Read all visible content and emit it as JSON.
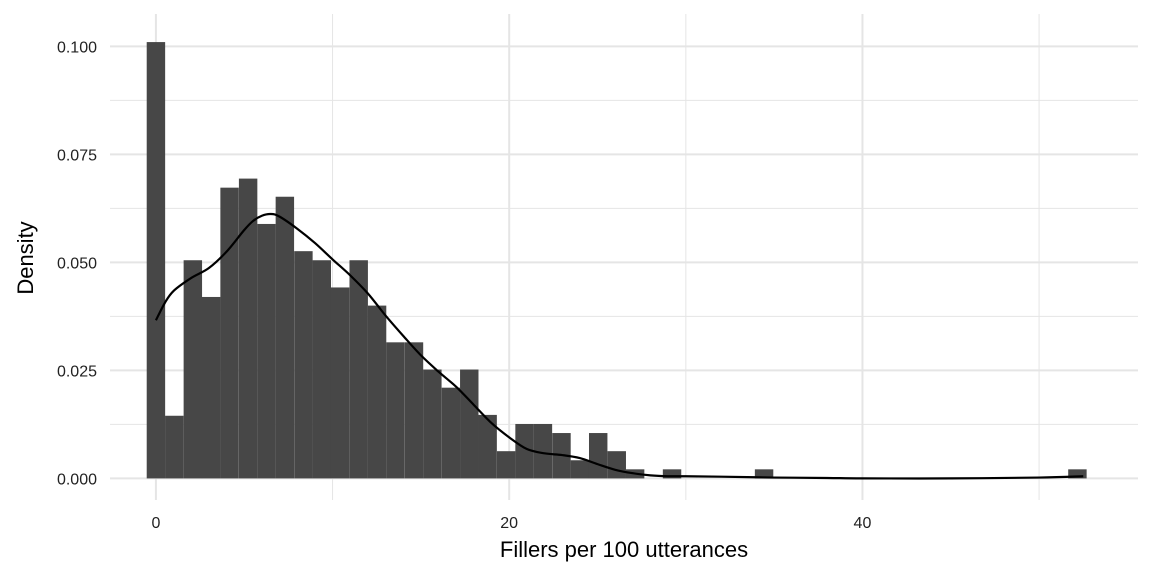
{
  "chart_data": {
    "type": "bar",
    "title": "",
    "xlabel": "Fillers per 100 utterances",
    "ylabel": "Density",
    "xlim": [
      -2.6,
      55.6
    ],
    "ylim": [
      -0.005,
      0.1075
    ],
    "bin_width": 1.0435,
    "x_ticks": [
      {
        "value": 0,
        "label": "0"
      },
      {
        "value": 20,
        "label": "20"
      },
      {
        "value": 40,
        "label": "40"
      }
    ],
    "y_ticks": [
      {
        "value": 0.0,
        "label": "0.000"
      },
      {
        "value": 0.025,
        "label": "0.025"
      },
      {
        "value": 0.05,
        "label": "0.050"
      },
      {
        "value": 0.075,
        "label": "0.075"
      },
      {
        "value": 0.1,
        "label": "0.100"
      }
    ],
    "x_minor_gridlines": [
      10,
      30,
      50
    ],
    "y_minor_gridlines": [
      0.0125,
      0.0375,
      0.0625,
      0.0875
    ],
    "bars": [
      {
        "x": 0.0,
        "y": 0.101
      },
      {
        "x": 1.04,
        "y": 0.0145
      },
      {
        "x": 2.09,
        "y": 0.0505
      },
      {
        "x": 3.13,
        "y": 0.042
      },
      {
        "x": 4.17,
        "y": 0.0673
      },
      {
        "x": 5.22,
        "y": 0.0694
      },
      {
        "x": 6.26,
        "y": 0.0589
      },
      {
        "x": 7.3,
        "y": 0.0652
      },
      {
        "x": 8.35,
        "y": 0.0526
      },
      {
        "x": 9.39,
        "y": 0.0505
      },
      {
        "x": 10.43,
        "y": 0.0442
      },
      {
        "x": 11.48,
        "y": 0.0505
      },
      {
        "x": 12.52,
        "y": 0.04
      },
      {
        "x": 13.56,
        "y": 0.0315
      },
      {
        "x": 14.61,
        "y": 0.0315
      },
      {
        "x": 15.65,
        "y": 0.0252
      },
      {
        "x": 16.7,
        "y": 0.021
      },
      {
        "x": 17.74,
        "y": 0.0252
      },
      {
        "x": 18.78,
        "y": 0.0147
      },
      {
        "x": 19.83,
        "y": 0.0063
      },
      {
        "x": 20.87,
        "y": 0.0126
      },
      {
        "x": 21.91,
        "y": 0.0126
      },
      {
        "x": 22.96,
        "y": 0.0105
      },
      {
        "x": 24.0,
        "y": 0.0042
      },
      {
        "x": 25.04,
        "y": 0.0105
      },
      {
        "x": 26.09,
        "y": 0.0063
      },
      {
        "x": 27.13,
        "y": 0.0021
      },
      {
        "x": 29.22,
        "y": 0.0021
      },
      {
        "x": 34.43,
        "y": 0.0021
      },
      {
        "x": 52.17,
        "y": 0.0021
      }
    ],
    "density_curve": {
      "x": [
        0,
        0.5,
        1,
        2,
        3,
        4,
        5,
        5.5,
        6,
        6.5,
        7,
        8,
        9,
        10,
        11,
        12,
        13,
        14,
        15,
        16,
        17,
        18,
        19,
        20,
        21,
        22,
        23,
        24,
        25,
        26,
        27,
        28,
        29,
        30,
        32,
        35,
        38,
        40,
        45,
        50,
        52.5
      ],
      "y": [
        0.0366,
        0.0406,
        0.0434,
        0.0464,
        0.0487,
        0.0525,
        0.0575,
        0.0596,
        0.0608,
        0.0612,
        0.0606,
        0.0578,
        0.0545,
        0.0507,
        0.047,
        0.0428,
        0.0377,
        0.033,
        0.0285,
        0.0247,
        0.0212,
        0.017,
        0.0128,
        0.0095,
        0.0068,
        0.0058,
        0.0054,
        0.0047,
        0.0033,
        0.002,
        0.0012,
        0.0007,
        0.0005,
        0.0005,
        0.0004,
        0.0002,
        0.0001,
        0.0,
        0.0,
        0.0002,
        0.0005
      ]
    },
    "colors": {
      "bar_fill": "#474747",
      "curve": "#000000",
      "gridline": "#e5e5e5",
      "background": "#ffffff"
    },
    "grid": true,
    "legend": "none"
  }
}
